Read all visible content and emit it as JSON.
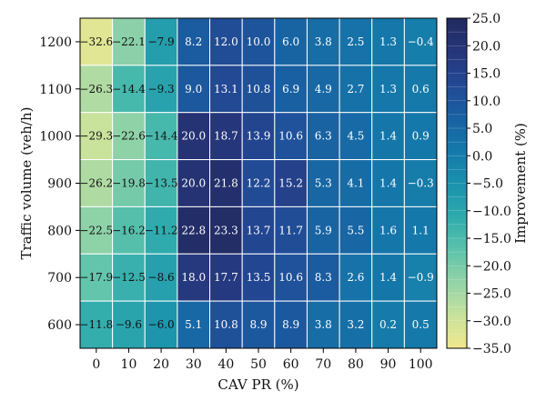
{
  "chart_data": {
    "type": "heatmap",
    "title": "",
    "xlabel": "CAV PR (%)",
    "ylabel": "Traffic volume (veh/h)",
    "x_categories": [
      "0",
      "10",
      "20",
      "30",
      "40",
      "50",
      "60",
      "70",
      "80",
      "90",
      "100"
    ],
    "y_categories": [
      "1200",
      "1100",
      "1000",
      "900",
      "800",
      "700",
      "600"
    ],
    "values": [
      [
        -32.6,
        -22.1,
        -7.9,
        8.2,
        12.0,
        10.0,
        6.0,
        3.8,
        2.5,
        1.3,
        -0.4
      ],
      [
        -26.3,
        -14.4,
        -9.3,
        9.0,
        13.1,
        10.8,
        6.9,
        4.9,
        2.7,
        1.3,
        0.6
      ],
      [
        -29.3,
        -22.6,
        -14.4,
        20.0,
        18.7,
        13.9,
        10.6,
        6.3,
        4.5,
        1.4,
        0.9
      ],
      [
        -26.2,
        -19.8,
        -13.5,
        20.0,
        21.8,
        12.2,
        15.2,
        5.3,
        4.1,
        1.4,
        -0.3
      ],
      [
        -22.5,
        -16.2,
        -11.2,
        22.8,
        23.3,
        13.7,
        11.7,
        5.9,
        5.5,
        1.6,
        1.1
      ],
      [
        -17.9,
        -12.5,
        -8.6,
        18.0,
        17.7,
        13.5,
        10.6,
        8.3,
        2.6,
        1.4,
        -0.9
      ],
      [
        -11.8,
        -9.6,
        -6.0,
        5.1,
        10.8,
        8.9,
        8.9,
        3.8,
        3.2,
        0.2,
        0.5
      ]
    ],
    "value_labels": [
      [
        "−32.6",
        "−22.1",
        "−7.9",
        "8.2",
        "12.0",
        "10.0",
        "6.0",
        "3.8",
        "2.5",
        "1.3",
        "−0.4"
      ],
      [
        "−26.3",
        "−14.4",
        "−9.3",
        "9.0",
        "13.1",
        "10.8",
        "6.9",
        "4.9",
        "2.7",
        "1.3",
        "0.6"
      ],
      [
        "−29.3",
        "−22.6",
        "−14.4",
        "20.0",
        "18.7",
        "13.9",
        "10.6",
        "6.3",
        "4.5",
        "1.4",
        "0.9"
      ],
      [
        "−26.2",
        "−19.8",
        "−13.5",
        "20.0",
        "21.8",
        "12.2",
        "15.2",
        "5.3",
        "4.1",
        "1.4",
        "−0.3"
      ],
      [
        "−22.5",
        "−16.2",
        "−11.2",
        "22.8",
        "23.3",
        "13.7",
        "11.7",
        "5.9",
        "5.5",
        "1.6",
        "1.1"
      ],
      [
        "−17.9",
        "−12.5",
        "−8.6",
        "18.0",
        "17.7",
        "13.5",
        "10.6",
        "8.3",
        "2.6",
        "1.4",
        "−0.9"
      ],
      [
        "−11.8",
        "−9.6",
        "−6.0",
        "5.1",
        "10.8",
        "8.9",
        "8.9",
        "3.8",
        "3.2",
        "0.2",
        "0.5"
      ]
    ],
    "colorbar": {
      "label": "Improvement (%)",
      "vmin": -35.0,
      "vmax": 25.0,
      "tick_values": [
        25.0,
        20.0,
        15.0,
        10.0,
        5.0,
        0.0,
        -5.0,
        -10.0,
        -15.0,
        -20.0,
        -25.0,
        -30.0,
        -35.0
      ],
      "tick_labels": [
        "25.0",
        "20.0",
        "15.0",
        "10.0",
        "5.0",
        "0.0",
        "−5.0",
        "−10.0",
        "−15.0",
        "−20.0",
        "−25.0",
        "−30.0",
        "−35.0"
      ],
      "colormap": [
        "#f1e88c",
        "#c7e29d",
        "#93d3a8",
        "#5bc2ab",
        "#2eaaad",
        "#1a91ac",
        "#1578aa",
        "#1960a2",
        "#234894",
        "#26357a",
        "#222a5e"
      ],
      "position": "right"
    },
    "grid": true,
    "gridline_color": "#ffffff",
    "text_color_dark": "#111111",
    "text_color_light": "#ffffff"
  }
}
